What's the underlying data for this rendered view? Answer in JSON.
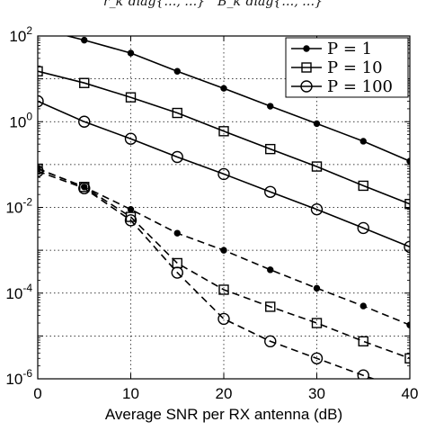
{
  "header": {
    "caption": "r_k  diag{…, …}     B_k  diag{…, …}"
  },
  "chart_data": {
    "type": "line",
    "title": "",
    "xlabel": "Average SNR per RX antenna (dB)",
    "ylabel": "",
    "xlim": [
      0,
      40
    ],
    "ylim_log10": [
      -6,
      2
    ],
    "y_scale": "log",
    "grid": true,
    "legend_position": "top-right",
    "x_ticks": [
      "0",
      "10",
      "20",
      "30",
      "40"
    ],
    "y_ticks": [
      {
        "base": "10",
        "exp": "2"
      },
      {
        "base": "10",
        "exp": "0"
      },
      {
        "base": "10",
        "exp": "-2"
      },
      {
        "base": "10",
        "exp": "-4"
      },
      {
        "base": "10",
        "exp": "-6"
      }
    ],
    "legend": [
      {
        "label": "P = 1",
        "marker": "dot"
      },
      {
        "label": "P = 10",
        "marker": "square"
      },
      {
        "label": "P = 100",
        "marker": "circle"
      }
    ],
    "x": [
      0,
      5,
      10,
      15,
      20,
      25,
      30,
      35,
      40
    ],
    "series": [
      {
        "name": "P = 1",
        "marker": "dot",
        "style": "solid",
        "values": [
          150,
          80,
          40,
          15,
          6,
          2.3,
          0.9,
          0.35,
          0.12
        ]
      },
      {
        "name": "P = 10",
        "marker": "square",
        "style": "solid",
        "values": [
          15,
          8,
          3.7,
          1.6,
          0.6,
          0.23,
          0.09,
          0.032,
          0.012
        ]
      },
      {
        "name": "P = 100",
        "marker": "circle",
        "style": "solid",
        "values": [
          3,
          1.0,
          0.4,
          0.15,
          0.06,
          0.023,
          0.009,
          0.0033,
          0.0012
        ]
      },
      {
        "name": "P = 1",
        "marker": "dot",
        "style": "dashed",
        "values": [
          0.08,
          0.03,
          0.009,
          0.0025,
          0.001,
          0.00035,
          0.00013,
          5e-05,
          1.8e-05
        ]
      },
      {
        "name": "P = 10",
        "marker": "square",
        "style": "dashed",
        "values": [
          0.08,
          0.03,
          0.006,
          0.0005,
          0.00012,
          4.8e-05,
          2e-05,
          7.5e-06,
          3e-06
        ]
      },
      {
        "name": "P = 100",
        "marker": "circle",
        "style": "dashed",
        "values": [
          0.07,
          0.028,
          0.005,
          0.0003,
          2.5e-05,
          7.5e-06,
          3e-06,
          1.2e-06,
          5e-07
        ]
      }
    ]
  }
}
